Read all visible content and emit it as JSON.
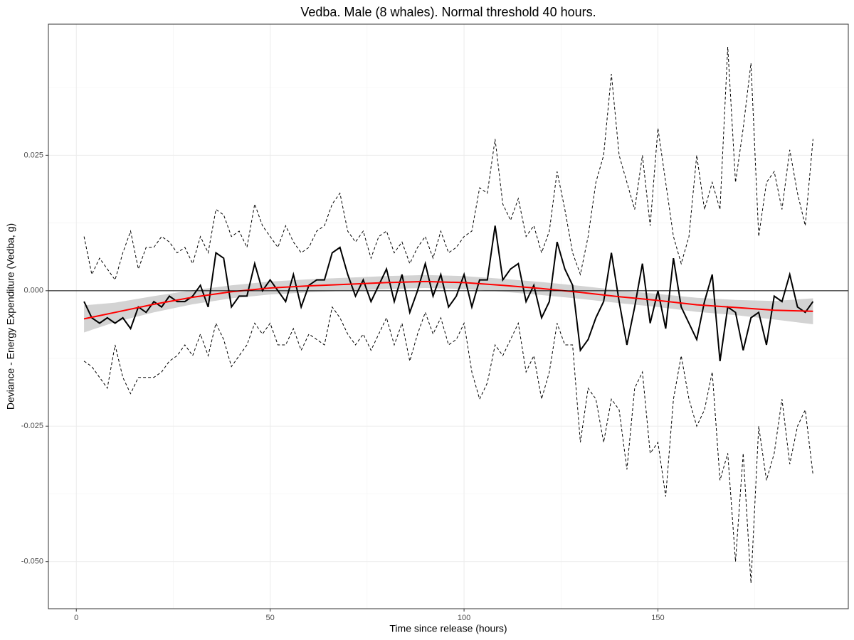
{
  "chart_data": {
    "type": "line",
    "title": "Vedba. Male (8 whales). Normal threshold 40 hours.",
    "xlabel": "Time since release (hours)",
    "ylabel": "Deviance - Energy Expenditure (Vedba, g)",
    "xlim": [
      -7.2,
      199.1
    ],
    "ylim": [
      -0.0587,
      0.0492
    ],
    "xticks": [
      0,
      50,
      100,
      150
    ],
    "yticks": [
      {
        "value": -0.05,
        "label": "-0.050"
      },
      0.025,
      {
        "value": 0,
        "label": "0.000"
      },
      {
        "value": -0.025,
        "label": "-0.025"
      }
    ],
    "grid": true,
    "hline": 0,
    "x": [
      2,
      4,
      6,
      8,
      10,
      12,
      14,
      16,
      18,
      20,
      22,
      24,
      26,
      28,
      30,
      32,
      34,
      36,
      38,
      40,
      42,
      44,
      46,
      48,
      50,
      52,
      54,
      56,
      58,
      60,
      62,
      64,
      66,
      68,
      70,
      72,
      74,
      76,
      78,
      80,
      82,
      84,
      86,
      88,
      90,
      92,
      94,
      96,
      98,
      100,
      102,
      104,
      106,
      108,
      110,
      112,
      114,
      116,
      118,
      120,
      122,
      124,
      126,
      128,
      130,
      132,
      134,
      136,
      138,
      140,
      142,
      144,
      146,
      148,
      150,
      152,
      154,
      156,
      158,
      160,
      162,
      164,
      166,
      168,
      170,
      172,
      174,
      176,
      178,
      180,
      182,
      184,
      186,
      188,
      190
    ],
    "series": [
      {
        "color": "#000000",
        "dash": "4,3",
        "width": 1,
        "values": [
          0.01,
          0.003,
          0.006,
          0.004,
          0.002,
          0.007,
          0.011,
          0.004,
          0.008,
          0.008,
          0.01,
          0.009,
          0.007,
          0.008,
          0.005,
          0.01,
          0.007,
          0.015,
          0.014,
          0.01,
          0.011,
          0.008,
          0.016,
          0.012,
          0.01,
          0.008,
          0.012,
          0.009,
          0.007,
          0.008,
          0.011,
          0.012,
          0.016,
          0.018,
          0.011,
          0.009,
          0.011,
          0.006,
          0.01,
          0.011,
          0.007,
          0.009,
          0.005,
          0.008,
          0.01,
          0.006,
          0.011,
          0.007,
          0.008,
          0.01,
          0.011,
          0.019,
          0.018,
          0.028,
          0.016,
          0.013,
          0.017,
          0.01,
          0.012,
          0.007,
          0.011,
          0.022,
          0.015,
          0.007,
          0.003,
          0.01,
          0.02,
          0.025,
          0.04,
          0.025,
          0.02,
          0.015,
          0.025,
          0.012,
          0.03,
          0.02,
          0.01,
          0.005,
          0.01,
          0.025,
          0.015,
          0.02,
          0.015,
          0.045,
          0.02,
          0.03,
          0.042,
          0.01,
          0.02,
          0.022,
          0.015,
          0.026,
          0.018,
          0.012,
          0.028
        ]
      },
      {
        "color": "#000000",
        "dash": "4,3",
        "width": 1,
        "values": [
          -0.013,
          -0.014,
          -0.016,
          -0.018,
          -0.01,
          -0.016,
          -0.019,
          -0.016,
          -0.016,
          -0.016,
          -0.015,
          -0.013,
          -0.012,
          -0.01,
          -0.012,
          -0.008,
          -0.012,
          -0.006,
          -0.009,
          -0.014,
          -0.012,
          -0.01,
          -0.006,
          -0.008,
          -0.006,
          -0.01,
          -0.01,
          -0.007,
          -0.011,
          -0.008,
          -0.009,
          -0.01,
          -0.003,
          -0.005,
          -0.008,
          -0.01,
          -0.008,
          -0.011,
          -0.008,
          -0.005,
          -0.01,
          -0.006,
          -0.013,
          -0.008,
          -0.004,
          -0.008,
          -0.005,
          -0.01,
          -0.009,
          -0.006,
          -0.015,
          -0.02,
          -0.017,
          -0.01,
          -0.012,
          -0.009,
          -0.006,
          -0.015,
          -0.012,
          -0.02,
          -0.015,
          -0.006,
          -0.01,
          -0.01,
          -0.028,
          -0.018,
          -0.02,
          -0.028,
          -0.02,
          -0.022,
          -0.033,
          -0.018,
          -0.015,
          -0.03,
          -0.028,
          -0.038,
          -0.02,
          -0.012,
          -0.02,
          -0.025,
          -0.022,
          -0.015,
          -0.035,
          -0.03,
          -0.05,
          -0.03,
          -0.054,
          -0.025,
          -0.035,
          -0.03,
          -0.02,
          -0.032,
          -0.025,
          -0.022,
          -0.034
        ]
      },
      {
        "color": "#000000",
        "dash": "",
        "width": 2,
        "values": [
          -0.002,
          -0.005,
          -0.006,
          -0.005,
          -0.006,
          -0.005,
          -0.007,
          -0.003,
          -0.004,
          -0.002,
          -0.003,
          -0.001,
          -0.002,
          -0.002,
          -0.001,
          0.001,
          -0.003,
          0.007,
          0.006,
          -0.003,
          -0.001,
          -0.001,
          0.005,
          0.0,
          0.002,
          0.0,
          -0.002,
          0.003,
          -0.003,
          0.001,
          0.002,
          0.002,
          0.007,
          0.008,
          0.003,
          -0.001,
          0.002,
          -0.002,
          0.001,
          0.004,
          -0.002,
          0.003,
          -0.004,
          0.0,
          0.005,
          -0.001,
          0.003,
          -0.003,
          -0.001,
          0.003,
          -0.003,
          0.002,
          0.002,
          0.012,
          0.002,
          0.004,
          0.005,
          -0.002,
          0.001,
          -0.005,
          -0.002,
          0.009,
          0.004,
          0.001,
          -0.011,
          -0.009,
          -0.005,
          -0.002,
          0.007,
          -0.002,
          -0.01,
          -0.003,
          0.005,
          -0.006,
          0.0,
          -0.007,
          0.006,
          -0.003,
          -0.006,
          -0.009,
          -0.002,
          0.003,
          -0.013,
          -0.003,
          -0.004,
          -0.011,
          -0.005,
          -0.004,
          -0.01,
          -0.001,
          -0.002,
          0.003,
          -0.003,
          -0.004,
          -0.002
        ]
      }
    ],
    "smooth": {
      "color": "#ff0000",
      "band_color": "#c8c8c8",
      "x": [
        2,
        10,
        20,
        30,
        40,
        50,
        60,
        70,
        80,
        90,
        100,
        110,
        120,
        130,
        140,
        150,
        160,
        170,
        180,
        190
      ],
      "values": [
        -0.0052,
        -0.004,
        -0.0025,
        -0.0012,
        -0.0002,
        0.0005,
        0.0009,
        0.0012,
        0.0015,
        0.0017,
        0.0015,
        0.001,
        0.0004,
        -0.0003,
        -0.0011,
        -0.0018,
        -0.0026,
        -0.0031,
        -0.0036,
        -0.0038
      ],
      "band_low": [
        -0.0077,
        -0.0058,
        -0.004,
        -0.0025,
        -0.0014,
        -0.0007,
        -0.0003,
        0.0,
        0.0003,
        0.0005,
        0.0003,
        -0.0002,
        -0.0008,
        -0.0015,
        -0.0023,
        -0.003,
        -0.0039,
        -0.0045,
        -0.0053,
        -0.0062
      ],
      "band_high": [
        -0.0027,
        -0.0022,
        -0.001,
        0.0001,
        0.001,
        0.0017,
        0.0021,
        0.0024,
        0.0027,
        0.0029,
        0.0027,
        0.0022,
        0.0016,
        0.0009,
        0.0001,
        -0.0006,
        -0.0013,
        -0.0017,
        -0.0019,
        -0.0014
      ]
    }
  }
}
